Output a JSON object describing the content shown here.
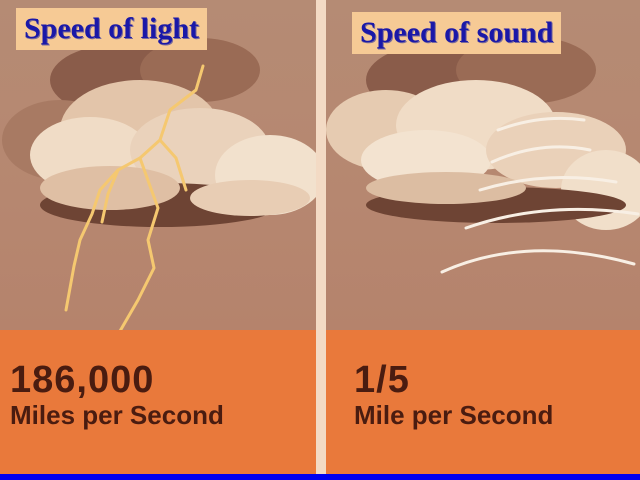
{
  "light": {
    "title": "Speed of light",
    "value": "186,000",
    "unit": "Miles per Second"
  },
  "sound": {
    "title": "Speed of sound",
    "value": "1/5",
    "unit": "Mile per Second"
  },
  "colors": {
    "title_text": "#1a18a8",
    "title_box": "#f6ca95",
    "band": "#e9793b",
    "number_text": "#4a1c10",
    "frame": "#0000f0",
    "lightning": "#f5c870"
  }
}
